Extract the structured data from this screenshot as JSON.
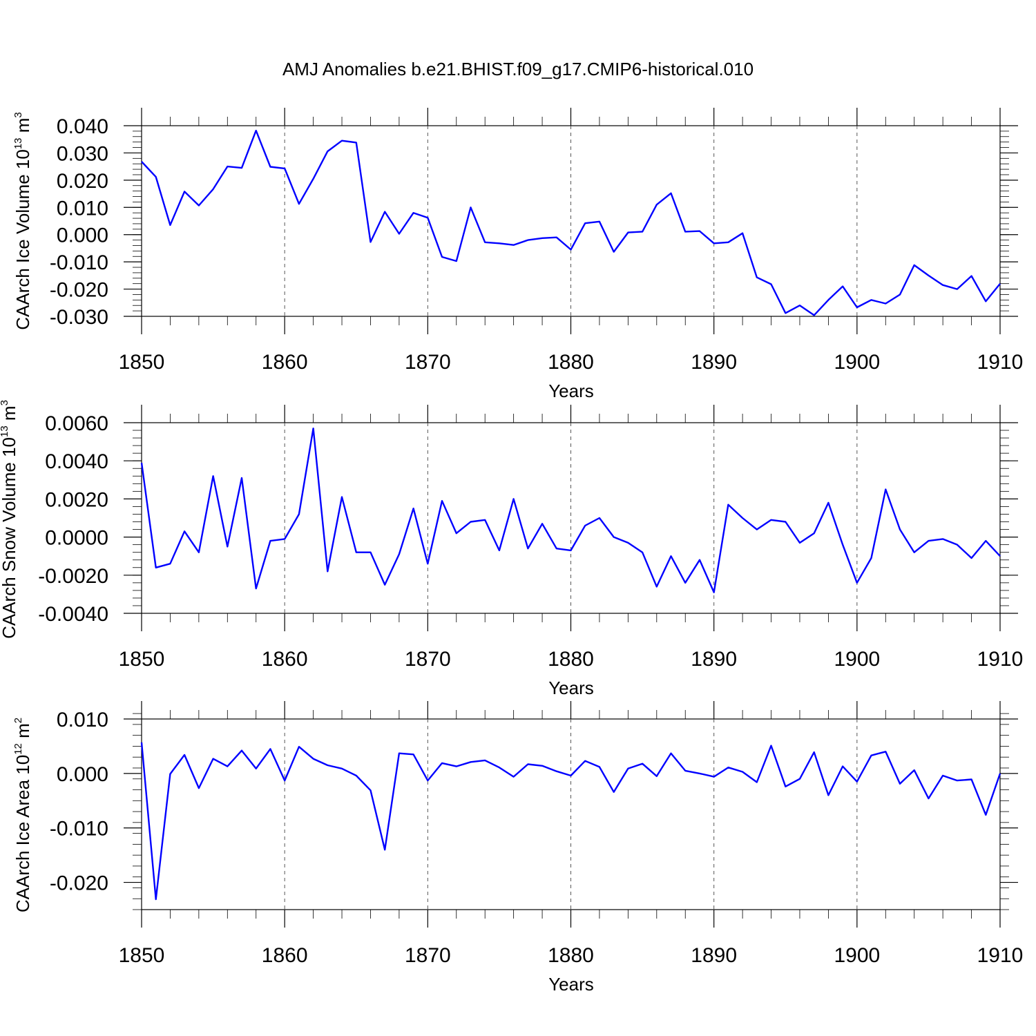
{
  "chart_data": [
    {
      "type": "line",
      "title": "AMJ Anomalies b.e21.BHIST.f09_g17.CMIP6-historical.010",
      "xlabel": "Years",
      "ylabel": "CAArch Ice Volume 10",
      "ylabel_exp": "13",
      "ylabel_unit": " m",
      "ylabel_unit_exp": "3",
      "xlim": [
        1850,
        1910
      ],
      "ylim": [
        -0.03,
        0.04
      ],
      "xticks": [
        1850,
        1860,
        1870,
        1880,
        1890,
        1900,
        1910
      ],
      "xtick_labels": [
        "1850",
        "1860",
        "1870",
        "1880",
        "1890",
        "1900",
        "1910"
      ],
      "yticks": [
        0.04,
        0.03,
        0.02,
        0.01,
        0.0,
        -0.01,
        -0.02,
        -0.03
      ],
      "ytick_labels": [
        "0.040",
        "0.030",
        "0.020",
        "0.010",
        "0.000",
        "-0.010",
        "-0.020",
        "-0.030"
      ],
      "y_minor_step": 0.002,
      "grid": "x-dashed",
      "color": "#0000ff",
      "x_start": 1850,
      "values": [
        0.0268,
        0.0212,
        0.0035,
        0.0158,
        0.0107,
        0.0167,
        0.025,
        0.0245,
        0.0382,
        0.0249,
        0.0243,
        0.0113,
        0.0205,
        0.0306,
        0.0345,
        0.0338,
        -0.0027,
        0.0084,
        0.0003,
        0.008,
        0.0062,
        -0.0082,
        -0.0097,
        0.01,
        -0.0028,
        -0.0032,
        -0.0038,
        -0.002,
        -0.0013,
        -0.001,
        -0.0055,
        0.0042,
        0.0048,
        -0.0063,
        0.0008,
        0.0011,
        0.011,
        0.0152,
        0.0011,
        0.0013,
        -0.0032,
        -0.0028,
        0.0005,
        -0.0157,
        -0.0182,
        -0.0288,
        -0.026,
        -0.0296,
        -0.024,
        -0.019,
        -0.0267,
        -0.024,
        -0.0253,
        -0.022,
        -0.0112,
        -0.015,
        -0.0185,
        -0.02,
        -0.0152,
        -0.0245,
        -0.018
      ]
    },
    {
      "type": "line",
      "xlabel": "Years",
      "ylabel": "CAArch Snow Volume 10",
      "ylabel_exp": "13",
      "ylabel_unit": " m",
      "ylabel_unit_exp": "3",
      "xlim": [
        1850,
        1910
      ],
      "ylim": [
        -0.004,
        0.006
      ],
      "xticks": [
        1850,
        1860,
        1870,
        1880,
        1890,
        1900,
        1910
      ],
      "xtick_labels": [
        "1850",
        "1860",
        "1870",
        "1880",
        "1890",
        "1900",
        "1910"
      ],
      "yticks": [
        0.006,
        0.004,
        0.002,
        0.0,
        -0.002,
        -0.004
      ],
      "ytick_labels": [
        "0.0060",
        "0.0040",
        "0.0020",
        "0.0000",
        "-0.0020",
        "-0.0040"
      ],
      "y_minor_step": 0.0004,
      "grid": "x-dashed",
      "color": "#0000ff",
      "x_start": 1850,
      "values": [
        0.0039,
        -0.0016,
        -0.0014,
        0.0003,
        -0.0008,
        0.0032,
        -0.0005,
        0.0031,
        -0.0027,
        -0.0002,
        -0.0001,
        0.0012,
        0.0057,
        -0.0018,
        0.0021,
        -0.0008,
        -0.0008,
        -0.0025,
        -0.0009,
        0.0015,
        -0.0014,
        0.0019,
        0.0002,
        0.0008,
        0.0009,
        -0.0007,
        0.002,
        -0.0006,
        0.0007,
        -0.0006,
        -0.0007,
        0.0006,
        0.001,
        0.0,
        -0.0003,
        -0.0008,
        -0.0026,
        -0.001,
        -0.0024,
        -0.0012,
        -0.0029,
        0.0017,
        0.001,
        0.0004,
        0.0009,
        0.0008,
        -0.0003,
        0.0002,
        0.0018,
        -0.0004,
        -0.0024,
        -0.0011,
        0.0025,
        0.0004,
        -0.0008,
        -0.0002,
        -0.0001,
        -0.0004,
        -0.0011,
        -0.0002,
        -0.001
      ]
    },
    {
      "type": "line",
      "xlabel": "Years",
      "ylabel": "CAArch Ice Area 10",
      "ylabel_exp": "12",
      "ylabel_unit": " m",
      "ylabel_unit_exp": "2",
      "xlim": [
        1850,
        1910
      ],
      "ylim": [
        -0.025,
        0.01
      ],
      "xticks": [
        1850,
        1860,
        1870,
        1880,
        1890,
        1900,
        1910
      ],
      "xtick_labels": [
        "1850",
        "1860",
        "1870",
        "1880",
        "1890",
        "1900",
        "1910"
      ],
      "yticks": [
        0.01,
        0.0,
        -0.01,
        -0.02
      ],
      "ytick_labels": [
        "0.010",
        "0.000",
        "-0.010",
        "-0.020"
      ],
      "y_minor_step": 0.002,
      "grid": "x-dashed",
      "color": "#0000ff",
      "x_start": 1850,
      "values": [
        0.0057,
        -0.0231,
        -0.0001,
        0.0034,
        -0.0027,
        0.0027,
        0.0013,
        0.0042,
        0.0009,
        0.0045,
        -0.0013,
        0.0049,
        0.0027,
        0.0015,
        0.0009,
        -0.0004,
        -0.0031,
        -0.014,
        0.0037,
        0.0035,
        -0.0013,
        0.0019,
        0.0013,
        0.0021,
        0.0024,
        0.0011,
        -0.0006,
        0.0017,
        0.0014,
        0.0004,
        -0.0004,
        0.0023,
        0.0012,
        -0.0034,
        0.0009,
        0.0018,
        -0.0005,
        0.0037,
        0.0005,
        0.0,
        -0.0006,
        0.0011,
        0.0003,
        -0.0016,
        0.0051,
        -0.0024,
        -0.001,
        0.0039,
        -0.004,
        0.0013,
        -0.0015,
        0.0033,
        0.004,
        -0.0019,
        0.0006,
        -0.0046,
        -0.0004,
        -0.0013,
        -0.0011,
        -0.0076,
        0.0
      ]
    }
  ]
}
